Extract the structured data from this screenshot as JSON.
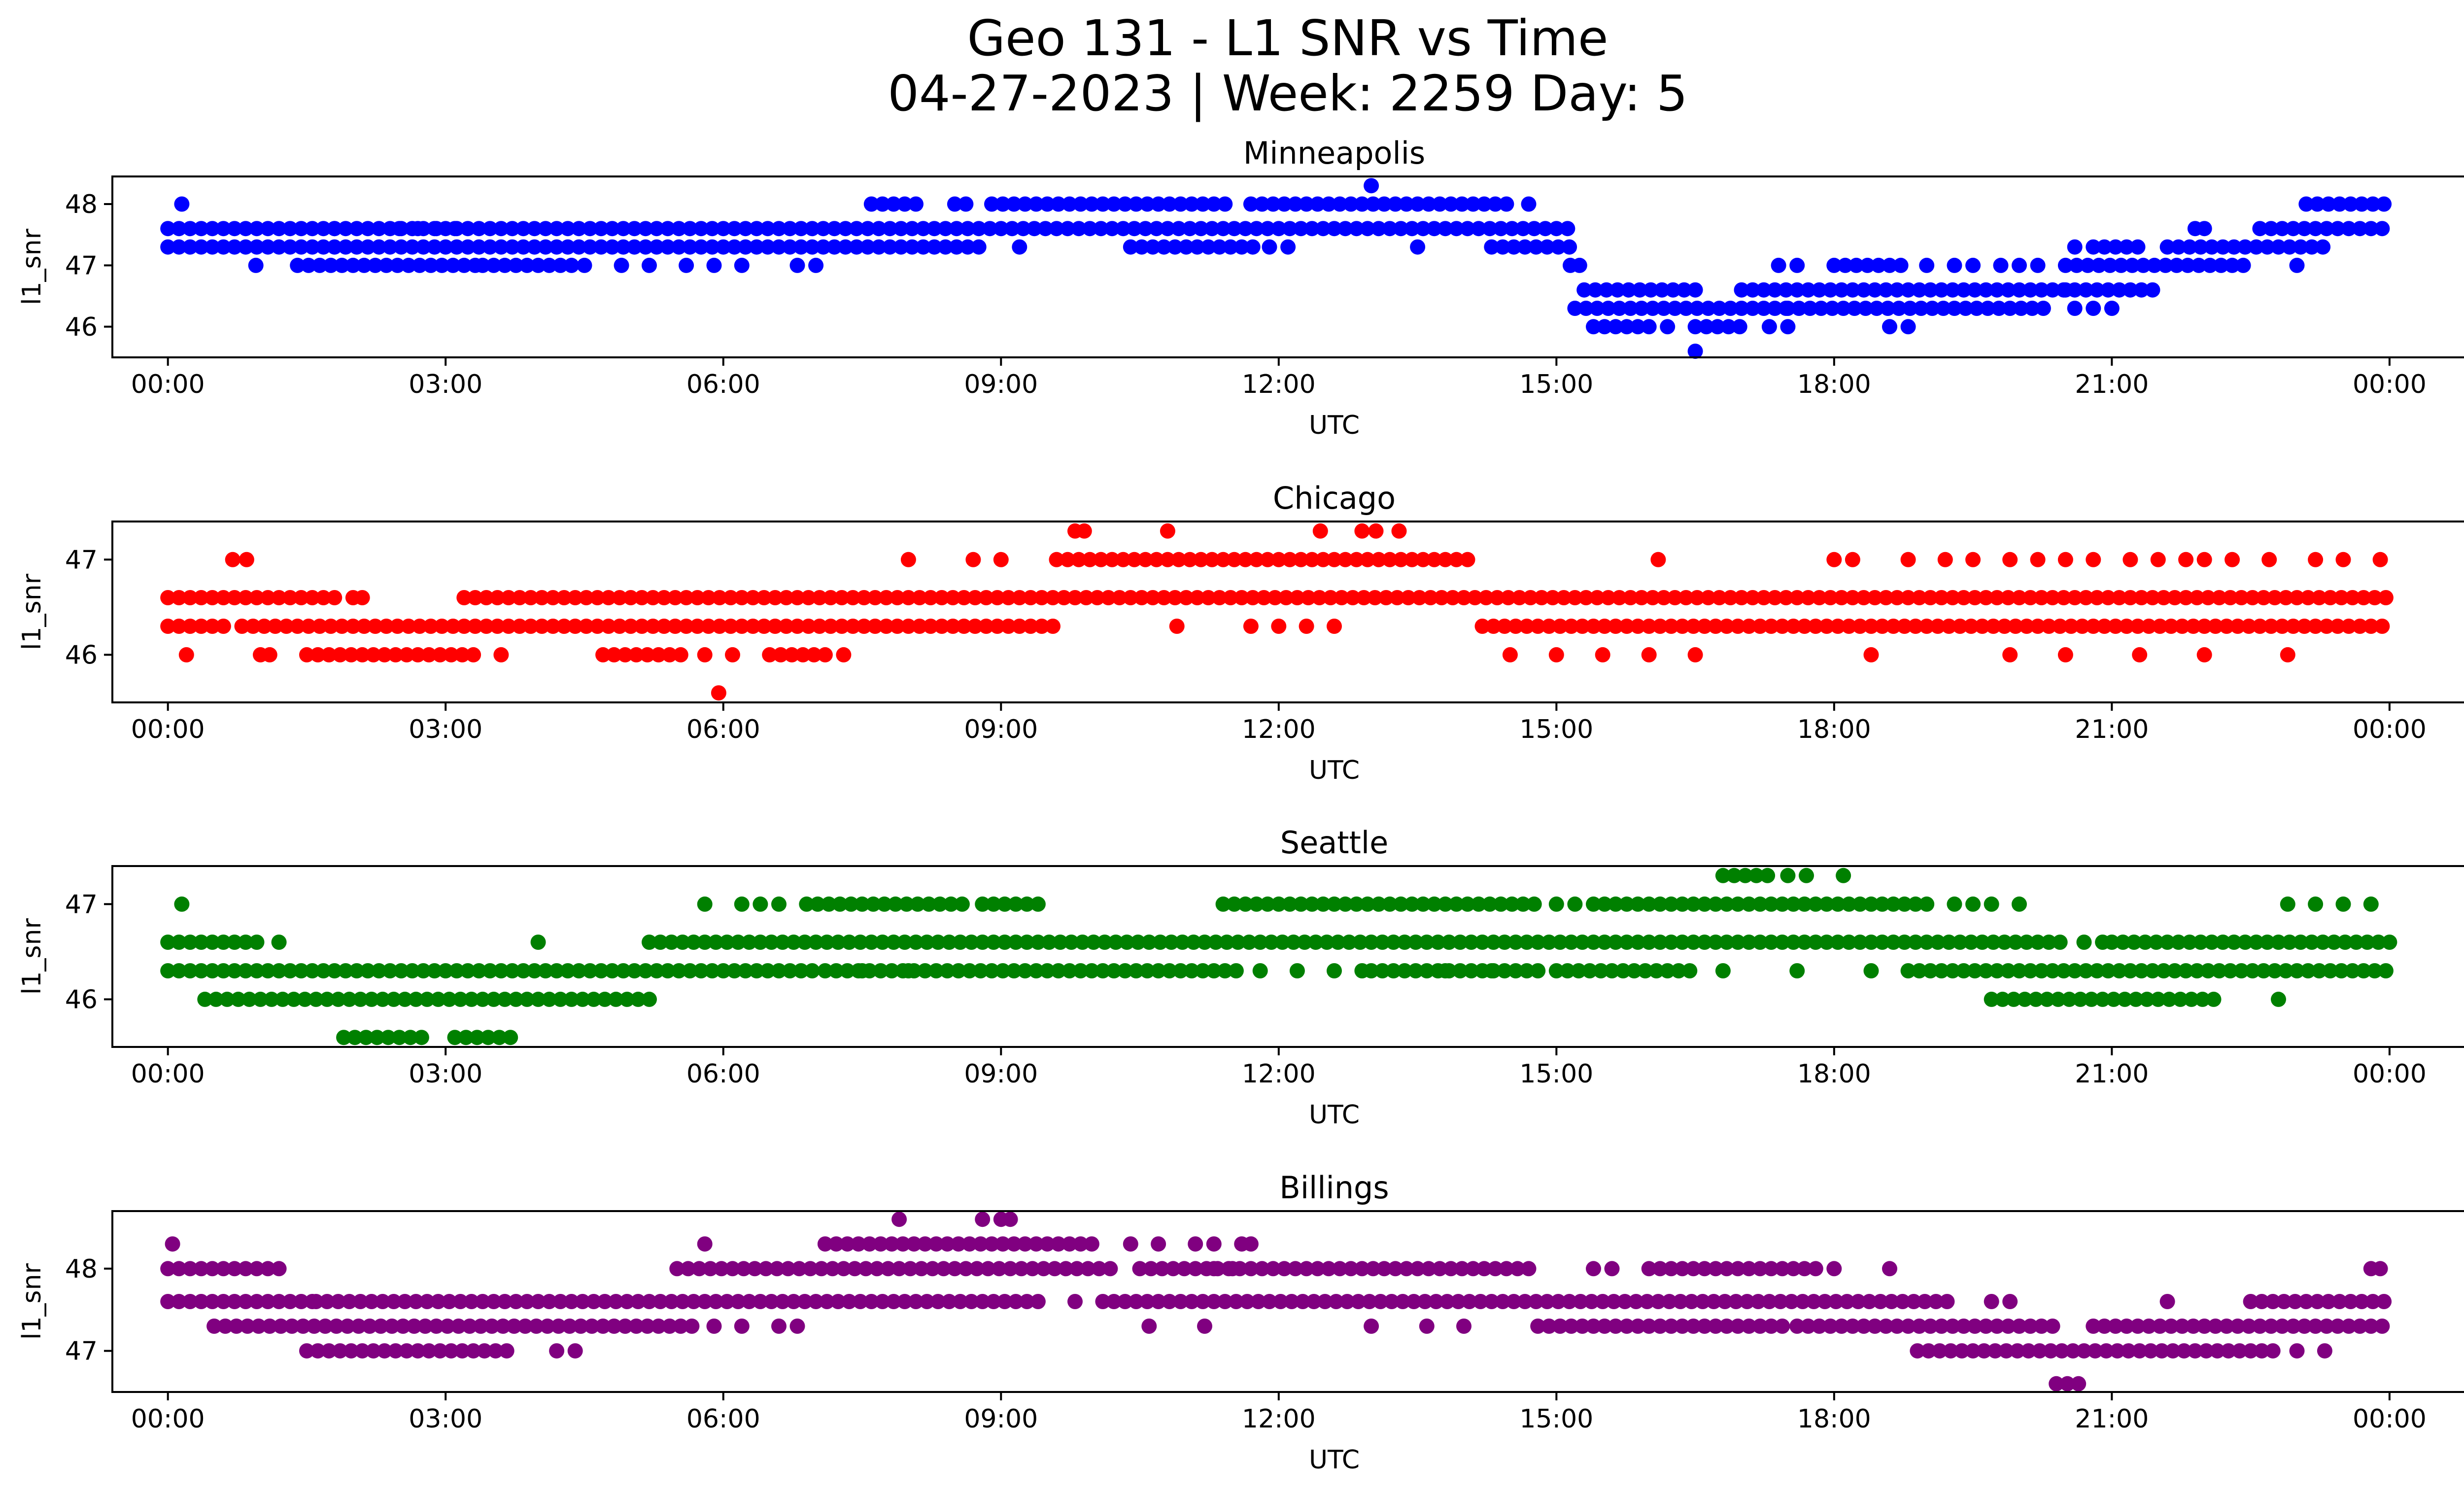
{
  "figure": {
    "title_line1": "Geo 131 - L1 SNR vs Time",
    "title_line2": "04-27-2023 | Week: 2259 Day: 5"
  },
  "chart_data": [
    {
      "type": "scatter",
      "title": "Minneapolis",
      "xlabel": "UTC",
      "ylabel": "l1_snr",
      "color": "#0000ff",
      "xticks": [
        "00:00",
        "03:00",
        "06:00",
        "09:00",
        "12:00",
        "15:00",
        "18:00",
        "21:00",
        "00:00"
      ],
      "xlim": [
        -0.6,
        25.8
      ],
      "yticks": [
        46,
        47,
        48
      ],
      "ylim": [
        45.5,
        48.45
      ],
      "grid": false,
      "series": [
        {
          "values_at": 47.6,
          "ranges": [
            [
              0.0,
              15.2
            ]
          ],
          "extra": [
            1.8,
            2.5,
            2.7,
            2.9,
            3.1
          ]
        },
        {
          "values_at": 47.3,
          "ranges": [
            [
              0.0,
              8.8
            ],
            [
              10.4,
              11.8
            ],
            [
              14.3,
              15.2
            ]
          ],
          "extra": [
            9.2,
            11.9,
            12.1,
            13.5
          ]
        },
        {
          "values_at": 47.0,
          "ranges": [
            [
              1.4,
              3.4
            ],
            [
              3.4,
              4.4
            ]
          ],
          "extra": [
            0.95,
            4.5,
            4.9,
            5.2,
            5.6,
            5.9,
            6.2,
            6.8,
            7.0,
            15.15,
            15.25
          ]
        },
        {
          "values_at": 48.0,
          "ranges": [
            [
              7.6,
              8.1
            ],
            [
              8.5,
              8.7
            ],
            [
              8.9,
              11.5
            ],
            [
              11.7,
              14.5
            ]
          ],
          "extra": [
            0.15,
            14.7
          ]
        },
        {
          "values_at": 48.3,
          "ranges": [],
          "extra": [
            13.0
          ]
        },
        {
          "values_at": 46.6,
          "ranges": [
            [
              15.3,
              16.5
            ],
            [
              17.0,
              21.5
            ]
          ],
          "extra": [
            20.5
          ]
        },
        {
          "values_at": 46.3,
          "ranges": [
            [
              15.2,
              17.5
            ],
            [
              17.5,
              20.3
            ]
          ],
          "extra": [
            20.6,
            20.8,
            21.0
          ]
        },
        {
          "values_at": 46.0,
          "ranges": [
            [
              15.4,
              16.0
            ],
            [
              16.5,
              17.0
            ]
          ],
          "extra": [
            16.2,
            17.3,
            17.5,
            18.6,
            18.8
          ]
        },
        {
          "values_at": 45.6,
          "ranges": [],
          "extra": [
            16.5
          ]
        },
        {
          "values_at": 47.0,
          "ranges": [
            [
              18.0,
              18.8
            ],
            [
              20.5,
              22.5
            ]
          ],
          "extra": [
            17.4,
            17.6,
            19.0,
            19.3,
            19.5,
            19.8,
            20.0,
            20.2,
            23.0
          ]
        },
        {
          "values_at": 47.3,
          "ranges": [
            [
              21.6,
              23.3
            ],
            [
              20.8,
              21.3
            ]
          ],
          "extra": [
            20.6
          ]
        },
        {
          "values_at": 47.6,
          "ranges": [
            [
              22.6,
              24.0
            ]
          ],
          "extra": [
            21.9,
            22.0
          ]
        },
        {
          "values_at": 48.0,
          "ranges": [
            [
              23.1,
              24.0
            ]
          ],
          "extra": []
        }
      ]
    },
    {
      "type": "scatter",
      "title": "Chicago",
      "xlabel": "UTC",
      "ylabel": "l1_snr",
      "color": "#ff0000",
      "xticks": [
        "00:00",
        "03:00",
        "06:00",
        "09:00",
        "12:00",
        "15:00",
        "18:00",
        "21:00",
        "00:00"
      ],
      "xlim": [
        -0.6,
        25.8
      ],
      "yticks": [
        46,
        47
      ],
      "ylim": [
        45.5,
        47.4
      ],
      "grid": false,
      "series": [
        {
          "values_at": 46.6,
          "ranges": [
            [
              0.0,
              1.8
            ],
            [
              3.2,
              24.0
            ]
          ],
          "extra": [
            2.0,
            2.1
          ]
        },
        {
          "values_at": 46.3,
          "ranges": [
            [
              0.0,
              0.7
            ],
            [
              0.8,
              9.6
            ],
            [
              14.2,
              24.0
            ]
          ],
          "extra": [
            10.9,
            11.7,
            12.0,
            12.3,
            12.6
          ]
        },
        {
          "values_at": 46.0,
          "ranges": [
            [
              1.5,
              3.3
            ],
            [
              4.7,
              5.6
            ],
            [
              6.5,
              7.1
            ]
          ],
          "extra": [
            0.2,
            1.0,
            1.1,
            3.6,
            5.8,
            6.1,
            7.3,
            14.5,
            15.0,
            15.5,
            16.0,
            16.5,
            18.4,
            19.9,
            20.5,
            21.3,
            22.0,
            22.9
          ]
        },
        {
          "values_at": 45.6,
          "ranges": [],
          "extra": [
            5.95
          ]
        },
        {
          "values_at": 47.0,
          "ranges": [
            [
              9.6,
              14.1
            ]
          ],
          "extra": [
            0.7,
            0.85,
            8.0,
            8.7,
            9.0,
            16.1,
            18.0,
            18.2,
            18.8,
            19.2,
            19.5,
            19.9,
            20.2,
            20.5,
            20.8,
            21.2,
            21.5,
            21.8,
            22.0,
            22.3,
            22.7,
            23.2,
            23.5,
            23.9
          ]
        },
        {
          "values_at": 47.3,
          "ranges": [],
          "extra": [
            9.8,
            9.9,
            10.8,
            12.45,
            12.9,
            13.05,
            13.3
          ]
        }
      ]
    },
    {
      "type": "scatter",
      "title": "Seattle",
      "xlabel": "UTC",
      "ylabel": "l1_snr",
      "color": "#008000",
      "xticks": [
        "00:00",
        "03:00",
        "06:00",
        "09:00",
        "12:00",
        "15:00",
        "18:00",
        "21:00",
        "00:00"
      ],
      "xlim": [
        -0.6,
        25.8
      ],
      "yticks": [
        46,
        47
      ],
      "ylim": [
        45.5,
        47.4
      ],
      "grid": false,
      "series": [
        {
          "values_at": 46.6,
          "ranges": [
            [
              0.0,
              1.0
            ],
            [
              5.2,
              20.5
            ],
            [
              21.0,
              24.0
            ]
          ],
          "extra": [
            1.2,
            4.0,
            20.7,
            20.9
          ]
        },
        {
          "values_at": 46.3,
          "ranges": [
            [
              0.0,
              7.0
            ],
            [
              7.1,
              11.6
            ],
            [
              13.0,
              14.8
            ],
            [
              15.0,
              16.5
            ],
            [
              18.8,
              24.0
            ]
          ],
          "extra": [
            7.5,
            8.0,
            11.8,
            12.2,
            12.6,
            12.9,
            13.8,
            14.3,
            16.8,
            17.6,
            18.4
          ]
        },
        {
          "values_at": 46.0,
          "ranges": [
            [
              0.4,
              5.3
            ],
            [
              19.7,
              22.2
            ]
          ],
          "extra": [
            22.8
          ]
        },
        {
          "values_at": 45.6,
          "ranges": [
            [
              1.9,
              2.8
            ],
            [
              3.1,
              3.7
            ]
          ],
          "extra": []
        },
        {
          "values_at": 47.0,
          "ranges": [
            [
              6.9,
              8.6
            ],
            [
              8.8,
              9.5
            ],
            [
              11.4,
              14.8
            ],
            [
              15.4,
              19.0
            ]
          ],
          "extra": [
            0.15,
            5.8,
            6.2,
            6.4,
            6.6,
            15.0,
            15.2,
            19.3,
            19.5,
            19.7,
            20.0,
            22.9,
            23.2,
            23.5,
            23.8
          ]
        },
        {
          "values_at": 47.3,
          "ranges": [
            [
              16.8,
              17.3
            ]
          ],
          "extra": [
            17.5,
            17.7,
            18.1
          ]
        }
      ]
    },
    {
      "type": "scatter",
      "title": "Billings",
      "xlabel": "UTC",
      "ylabel": "l1_snr",
      "color": "#800080",
      "xticks": [
        "00:00",
        "03:00",
        "06:00",
        "09:00",
        "12:00",
        "15:00",
        "18:00",
        "21:00",
        "00:00"
      ],
      "xlim": [
        -0.6,
        25.8
      ],
      "yticks": [
        47,
        48
      ],
      "ylim": [
        46.5,
        48.7
      ],
      "grid": false,
      "series": [
        {
          "values_at": 48.0,
          "ranges": [
            [
              0.0,
              1.2
            ],
            [
              5.5,
              10.2
            ],
            [
              10.5,
              14.8
            ],
            [
              16.0,
              17.8
            ]
          ],
          "extra": [
            11.3,
            11.5,
            15.4,
            15.6,
            18.0,
            18.6,
            23.8,
            23.9
          ]
        },
        {
          "values_at": 48.3,
          "ranges": [
            [
              7.1,
              10.0
            ]
          ],
          "extra": [
            0.05,
            5.8,
            10.4,
            10.7,
            11.1,
            11.3,
            11.6,
            11.7
          ]
        },
        {
          "values_at": 48.6,
          "ranges": [],
          "extra": [
            7.9,
            8.8,
            9.0,
            9.1
          ]
        },
        {
          "values_at": 47.6,
          "ranges": [
            [
              0.0,
              1.6
            ],
            [
              1.6,
              9.5
            ],
            [
              10.1,
              19.3
            ],
            [
              22.5,
              24.0
            ]
          ],
          "extra": [
            9.8,
            19.7,
            19.9,
            21.6
          ]
        },
        {
          "values_at": 47.3,
          "ranges": [
            [
              0.5,
              5.7
            ],
            [
              14.8,
              17.5
            ],
            [
              17.6,
              20.4
            ],
            [
              20.8,
              24.0
            ]
          ],
          "extra": [
            5.9,
            6.2,
            6.6,
            6.8,
            10.6,
            11.2,
            13.0,
            13.6,
            14.0
          ]
        },
        {
          "values_at": 47.0,
          "ranges": [
            [
              1.5,
              3.7
            ],
            [
              18.9,
              22.8
            ]
          ],
          "extra": [
            4.2,
            4.4,
            23.0,
            23.3
          ]
        },
        {
          "values_at": 46.6,
          "ranges": [
            [
              20.4,
              20.7
            ]
          ],
          "extra": []
        }
      ]
    }
  ]
}
